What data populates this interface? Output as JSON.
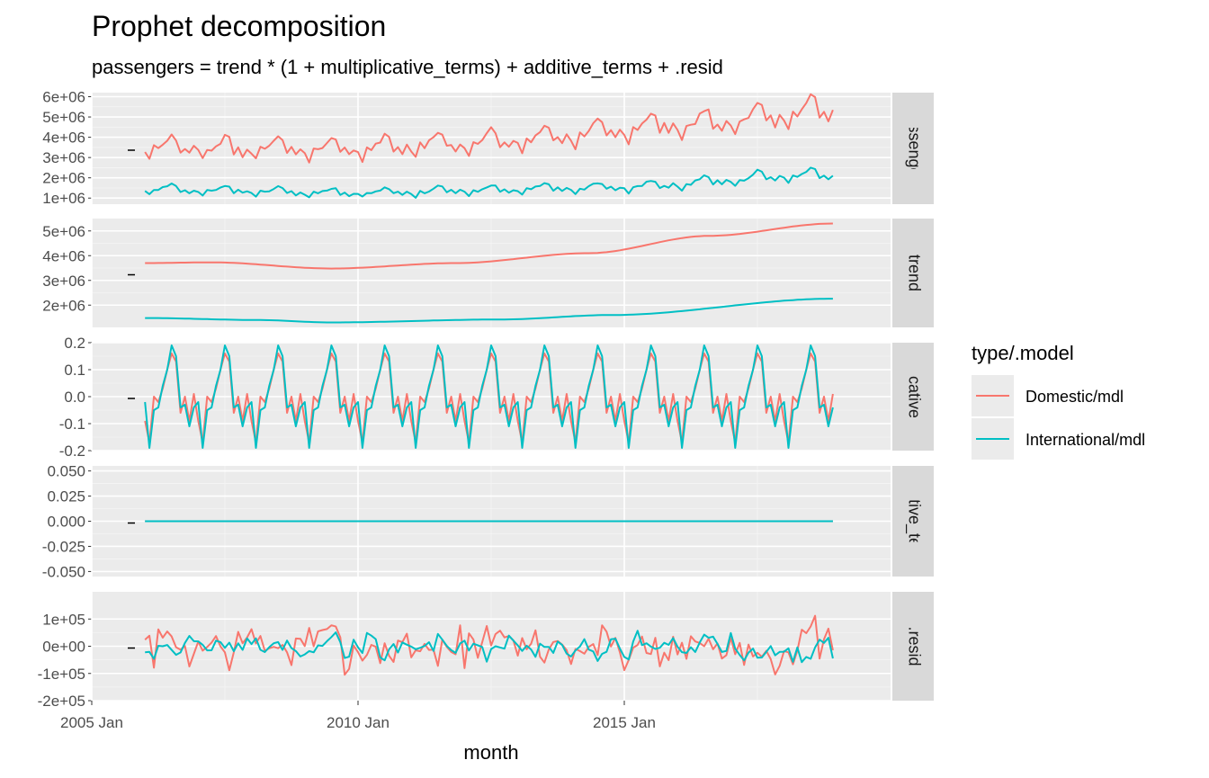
{
  "chart_data": {
    "type": "line",
    "title": "Prophet decomposition",
    "subtitle": "passengers = trend * (1 + multiplicative_terms) + additive_terms + .resid",
    "xlabel": "month",
    "x_ticks": [
      "2005 Jan",
      "2010 Jan",
      "2015 Jan"
    ],
    "x_range": [
      "2005 Jan",
      "2020 Jan"
    ],
    "x_start": "2006 Jan",
    "x_end": "2018 Dec",
    "legend": {
      "title": "type/.model",
      "placement": "right",
      "entries": [
        {
          "label": "Domestic/mdl",
          "color": "#F8766D"
        },
        {
          "label": "International/mdl",
          "color": "#00BFC4"
        }
      ]
    },
    "panels": [
      {
        "strip": "passengers",
        "y_ticks": [
          "1e+06",
          "2e+06",
          "3e+06",
          "4e+06",
          "5e+06",
          "6e+06"
        ],
        "y_tick_values": [
          1000000,
          2000000,
          3000000,
          4000000,
          5000000,
          6000000
        ],
        "ylim": [
          700000,
          6200000
        ],
        "series": [
          {
            "name": "Domestic/mdl",
            "kind": "seasonal",
            "trend_knots": [
              [
                0,
                3500000
              ],
              [
                40,
                3400000
              ],
              [
                80,
                3800000
              ],
              [
                120,
                4600000
              ],
              [
                155,
                5300000
              ]
            ],
            "amp": 0.16,
            "noise": 120000
          },
          {
            "name": "International/mdl",
            "kind": "seasonal",
            "trend_knots": [
              [
                0,
                1450000
              ],
              [
                45,
                1250000
              ],
              [
                100,
                1500000
              ],
              [
                155,
                2150000
              ]
            ],
            "amp": 0.18,
            "noise": 60000
          }
        ]
      },
      {
        "strip": "trend",
        "y_ticks": [
          "2e+06",
          "3e+06",
          "4e+06",
          "5e+06"
        ],
        "y_tick_values": [
          2000000,
          3000000,
          4000000,
          5000000
        ],
        "ylim": [
          1100000,
          5500000
        ],
        "series": [
          {
            "name": "Domestic/mdl",
            "kind": "trend",
            "knots": [
              [
                0,
                3700000
              ],
              [
                15,
                3730000
              ],
              [
                42,
                3480000
              ],
              [
                70,
                3700000
              ],
              [
                100,
                4100000
              ],
              [
                127,
                4800000
              ],
              [
                155,
                5300000
              ]
            ]
          },
          {
            "name": "International/mdl",
            "kind": "trend",
            "knots": [
              [
                0,
                1480000
              ],
              [
                25,
                1400000
              ],
              [
                42,
                1300000
              ],
              [
                80,
                1420000
              ],
              [
                105,
                1600000
              ],
              [
                155,
                2260000
              ]
            ]
          }
        ]
      },
      {
        "strip": "multiplicative_terms",
        "y_ticks": [
          "-0.2",
          "-0.1",
          "0.0",
          "0.1",
          "0.2"
        ],
        "y_tick_values": [
          -0.2,
          -0.1,
          0.0,
          0.1,
          0.2
        ],
        "ylim": [
          -0.2,
          0.2
        ],
        "series": [
          {
            "name": "Domestic/mdl",
            "kind": "pattern",
            "pattern": [
              -0.09,
              -0.17,
              0.0,
              -0.02,
              0.03,
              0.1,
              0.16,
              0.13,
              -0.06,
              0.0,
              -0.09,
              0.01
            ]
          },
          {
            "name": "International/mdl",
            "kind": "pattern",
            "pattern": [
              -0.02,
              -0.19,
              -0.05,
              -0.04,
              0.04,
              0.1,
              0.19,
              0.15,
              -0.04,
              -0.03,
              -0.11,
              -0.04
            ]
          }
        ]
      },
      {
        "strip": "additive_terms",
        "y_ticks": [
          "-0.050",
          "-0.025",
          "0.000",
          "0.025",
          "0.050"
        ],
        "y_tick_values": [
          -0.05,
          -0.025,
          0.0,
          0.025,
          0.05
        ],
        "ylim": [
          -0.055,
          0.055
        ],
        "series": [
          {
            "name": "Domestic/mdl",
            "kind": "constant",
            "value": 0
          },
          {
            "name": "International/mdl",
            "kind": "constant",
            "value": 0
          }
        ]
      },
      {
        "strip": ".resid",
        "y_ticks": [
          "-2e+05",
          "-1e+05",
          "0e+00",
          "1e+05"
        ],
        "y_tick_values": [
          -200000,
          -100000,
          0,
          100000
        ],
        "ylim": [
          -200000,
          200000
        ],
        "series": [
          {
            "name": "Domestic/mdl",
            "kind": "noise",
            "scale": 70000,
            "seed": 7
          },
          {
            "name": "International/mdl",
            "kind": "noise",
            "scale": 40000,
            "seed": 19
          }
        ]
      }
    ]
  }
}
